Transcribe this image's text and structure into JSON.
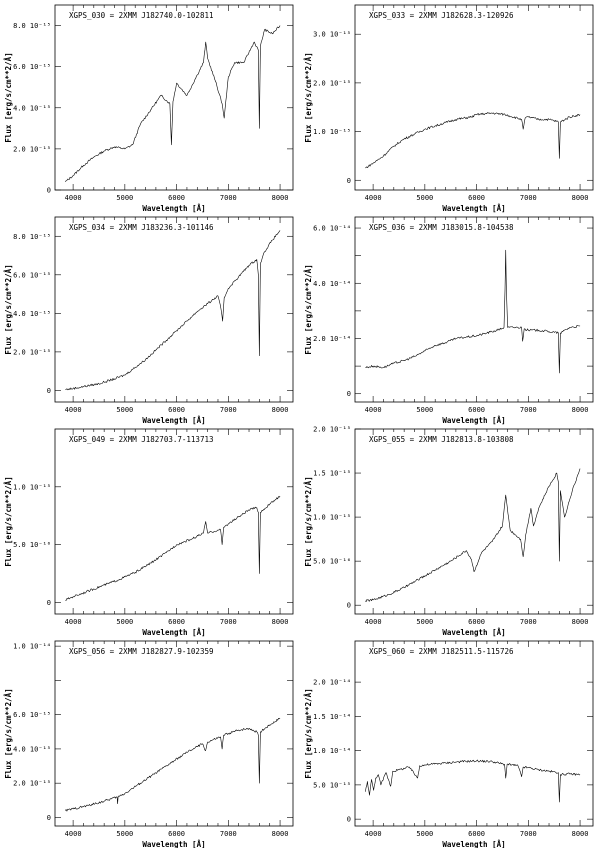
{
  "figure": {
    "xlabel": "Wavelength [Å]",
    "ylabel": "Flux [erg/s/cm**2/Å]"
  },
  "chart_data": [
    {
      "type": "line",
      "title": "XGPS_030 = 2XMM J182740.0-102811",
      "xlabel": "Wavelength [Å]",
      "ylabel": "Flux [erg/s/cm**2/Å]",
      "xlim": [
        3650,
        8250
      ],
      "ylim": [
        0,
        9e-15
      ],
      "xticks": [
        4000,
        5000,
        6000,
        7000,
        8000
      ],
      "yticks": [
        0,
        2e-15,
        4e-15,
        6e-15,
        8e-15
      ],
      "ytick_labels": [
        "0",
        "2.0 10⁻¹⁵",
        "4.0 10⁻¹⁵",
        "6.0 10⁻¹⁵",
        "8.0 10⁻¹⁵"
      ],
      "series": [
        {
          "x": [
            3850,
            4000,
            4200,
            4400,
            4600,
            4800,
            5000,
            5150,
            5300,
            5500,
            5700,
            5870,
            5900,
            5930,
            6000,
            6200,
            6400,
            6520,
            6563,
            6600,
            6750,
            6880,
            6920,
            7000,
            7120,
            7300,
            7500,
            7580,
            7600,
            7620,
            7700,
            7850,
            8000
          ],
          "y": [
            4e-16,
            7e-16,
            1.2e-15,
            1.6e-15,
            1.9e-15,
            2.1e-15,
            2e-15,
            2.2e-15,
            3.2e-15,
            3.9e-15,
            4.6e-15,
            4.2e-15,
            2.2e-15,
            4.3e-15,
            5.2e-15,
            4.6e-15,
            5.6e-15,
            6.2e-15,
            7.2e-15,
            6.4e-15,
            5.3e-15,
            4.2e-15,
            3.5e-15,
            5.5e-15,
            6.2e-15,
            6.2e-15,
            7.2e-15,
            6.8e-15,
            3e-15,
            7e-15,
            7.8e-15,
            7.6e-15,
            8e-15
          ]
        }
      ]
    },
    {
      "type": "line",
      "title": "XGPS_033 = 2XMM J182628.3-120926",
      "xlabel": "Wavelength [Å]",
      "ylabel": "Flux [erg/s/cm**2/Å]",
      "xlim": [
        3650,
        8250
      ],
      "ylim": [
        -2e-16,
        3.6e-15
      ],
      "xticks": [
        4000,
        5000,
        6000,
        7000,
        8000
      ],
      "yticks": [
        0,
        1e-15,
        2e-15,
        3e-15
      ],
      "ytick_labels": [
        "0",
        "1.0 10⁻¹⁵",
        "2.0 10⁻¹⁵",
        "3.0 10⁻¹⁵"
      ],
      "series": [
        {
          "x": [
            3850,
            4000,
            4200,
            4400,
            4600,
            4800,
            5000,
            5300,
            5600,
            5900,
            6000,
            6300,
            6550,
            6870,
            6900,
            6940,
            7000,
            7200,
            7400,
            7580,
            7600,
            7620,
            7800,
            8000
          ],
          "y": [
            2.5e-16,
            3.5e-16,
            5e-16,
            7e-16,
            8.5e-16,
            9.5e-16,
            1.05e-15,
            1.15e-15,
            1.25e-15,
            1.3e-15,
            1.35e-15,
            1.38e-15,
            1.35e-15,
            1.25e-15,
            1.05e-15,
            1.28e-15,
            1.3e-15,
            1.25e-15,
            1.25e-15,
            1.2e-15,
            4.5e-16,
            1.2e-15,
            1.3e-15,
            1.35e-15
          ]
        }
      ]
    },
    {
      "type": "line",
      "title": "XGPS_034 = 2XMM J183236.3-101146",
      "xlabel": "Wavelength [Å]",
      "ylabel": "Flux [erg/s/cm**2/Å]",
      "xlim": [
        3650,
        8250
      ],
      "ylim": [
        -6e-16,
        9e-15
      ],
      "xticks": [
        4000,
        5000,
        6000,
        7000,
        8000
      ],
      "yticks": [
        0,
        2e-15,
        4e-15,
        6e-15,
        8e-15
      ],
      "ytick_labels": [
        "0",
        "2.0 10⁻¹⁵",
        "4.0 10⁻¹⁵",
        "6.0 10⁻¹⁵",
        "8.0 10⁻¹⁵"
      ],
      "series": [
        {
          "x": [
            3850,
            4000,
            4200,
            4500,
            4800,
            5000,
            5200,
            5400,
            5600,
            5800,
            6000,
            6200,
            6400,
            6600,
            6800,
            6860,
            6890,
            6920,
            7000,
            7200,
            7400,
            7550,
            7580,
            7600,
            7620,
            7700,
            7850,
            8000
          ],
          "y": [
            5e-17,
            1e-16,
            2e-16,
            3.5e-16,
            6e-16,
            8e-16,
            1.2e-15,
            1.6e-15,
            2.1e-15,
            2.6e-15,
            3.1e-15,
            3.6e-15,
            4.1e-15,
            4.5e-15,
            4.9e-15,
            4.2e-15,
            3.6e-15,
            4.8e-15,
            5.3e-15,
            5.9e-15,
            6.5e-15,
            6.8e-15,
            6e-15,
            1.8e-15,
            6.6e-15,
            7.2e-15,
            7.8e-15,
            8.3e-15
          ]
        }
      ]
    },
    {
      "type": "line",
      "title": "XGPS_036 = 2XMM J183015.8-104538",
      "xlabel": "Wavelength [Å]",
      "ylabel": "Flux [erg/s/cm**2/Å]",
      "xlim": [
        3650,
        8250
      ],
      "ylim": [
        -3e-15,
        6.4e-14
      ],
      "xticks": [
        4000,
        5000,
        6000,
        7000,
        8000
      ],
      "yticks": [
        0,
        1e-14,
        2e-14,
        3e-14,
        4e-14,
        5e-14,
        6e-14
      ],
      "ytick_labels": [
        "0",
        "",
        "2.0 10⁻¹⁴",
        "",
        "4.0 10⁻¹⁴",
        "",
        "6.0 10⁻¹⁴"
      ],
      "series": [
        {
          "x": [
            3850,
            4000,
            4200,
            4400,
            4600,
            4800,
            5000,
            5200,
            5400,
            5600,
            5800,
            6000,
            6200,
            6400,
            6530,
            6550,
            6563,
            6575,
            6600,
            6800,
            6870,
            6890,
            6920,
            7000,
            7200,
            7400,
            7580,
            7600,
            7620,
            7800,
            8000
          ],
          "y": [
            9.5e-15,
            1e-14,
            9.5e-15,
            1.1e-14,
            1.2e-14,
            1.35e-14,
            1.55e-14,
            1.75e-14,
            1.85e-14,
            2e-14,
            2.05e-14,
            2.1e-14,
            2.2e-14,
            2.3e-14,
            2.4e-14,
            3.8e-14,
            5.2e-14,
            3.8e-14,
            2.4e-14,
            2.4e-14,
            2.4e-14,
            1.9e-14,
            2.35e-14,
            2.3e-14,
            2.3e-14,
            2.25e-14,
            2.2e-14,
            7.5e-15,
            2.2e-14,
            2.4e-14,
            2.45e-14
          ]
        }
      ]
    },
    {
      "type": "line",
      "title": "XGPS_049 = 2XMM J182703.7-113713",
      "xlabel": "Wavelength [Å]",
      "ylabel": "Flux [erg/s/cm**2/Å]",
      "xlim": [
        3650,
        8250
      ],
      "ylim": [
        -1e-16,
        1.5e-15
      ],
      "xticks": [
        4000,
        5000,
        6000,
        7000,
        8000
      ],
      "yticks": [
        0,
        5e-16,
        1e-15
      ],
      "ytick_labels": [
        "0",
        "5.0 10⁻¹⁶",
        "1.0 10⁻¹⁵"
      ],
      "series": [
        {
          "x": [
            3850,
            4000,
            4300,
            4600,
            4900,
            5200,
            5500,
            5800,
            6000,
            6300,
            6520,
            6563,
            6600,
            6850,
            6880,
            6910,
            7000,
            7200,
            7400,
            7550,
            7580,
            7600,
            7620,
            7800,
            8000
          ],
          "y": [
            2e-17,
            5e-17,
            1e-16,
            1.5e-16,
            2e-16,
            2.6e-16,
            3.4e-16,
            4.3e-16,
            5e-16,
            5.5e-16,
            6e-16,
            7e-16,
            6e-16,
            6.3e-16,
            5e-16,
            6.5e-16,
            6.8e-16,
            7.4e-16,
            8e-16,
            8.2e-16,
            7.8e-16,
            2.5e-16,
            7.8e-16,
            8.5e-16,
            9.2e-16
          ]
        }
      ]
    },
    {
      "type": "line",
      "title": "XGPS_055 = 2XMM J182813.8-103808",
      "xlabel": "Wavelength [Å]",
      "ylabel": "Flux [erg/s/cm**2/Å]",
      "xlim": [
        3650,
        8250
      ],
      "ylim": [
        -1e-16,
        2e-15
      ],
      "xticks": [
        4000,
        5000,
        6000,
        7000,
        8000
      ],
      "yticks": [
        0,
        5e-16,
        1e-15,
        1.5e-15,
        2e-15
      ],
      "ytick_labels": [
        "0",
        "5.0 10⁻¹⁶",
        "1.0 10⁻¹⁵",
        "1.5 10⁻¹⁵",
        "2.0 10⁻¹⁵"
      ],
      "series": [
        {
          "x": [
            3850,
            4000,
            4300,
            4600,
            4900,
            5200,
            5500,
            5800,
            5900,
            5950,
            6100,
            6300,
            6500,
            6563,
            6650,
            6850,
            6900,
            6950,
            7050,
            7100,
            7200,
            7400,
            7550,
            7580,
            7600,
            7620,
            7700,
            7850,
            8000
          ],
          "y": [
            5e-17,
            6e-17,
            1.2e-16,
            2e-16,
            3e-16,
            4e-16,
            5e-16,
            6.2e-16,
            5.2e-16,
            3.8e-16,
            6e-16,
            7.2e-16,
            9e-16,
            1.25e-15,
            8.5e-16,
            7.5e-16,
            5.5e-16,
            8e-16,
            1.1e-15,
            9e-16,
            1.1e-15,
            1.35e-15,
            1.5e-15,
            1.4e-15,
            5e-16,
            1.3e-15,
            1e-15,
            1.3e-15,
            1.55e-15
          ]
        }
      ]
    },
    {
      "type": "line",
      "title": "XGPS_056 = 2XMM J182827.9-102359",
      "xlabel": "Wavelength [Å]",
      "ylabel": "Flux [erg/s/cm**2/Å]",
      "xlim": [
        3650,
        8250
      ],
      "ylim": [
        -5e-16,
        1.03e-14
      ],
      "xticks": [
        4000,
        5000,
        6000,
        7000,
        8000
      ],
      "yticks": [
        0,
        2e-15,
        4e-15,
        6e-15,
        8e-15,
        1e-14
      ],
      "ytick_labels": [
        "0",
        "2.0 10⁻¹⁵",
        "4.0 10⁻¹⁵",
        "6.0 10⁻¹⁵",
        "",
        "1.0 10⁻¹⁴"
      ],
      "series": [
        {
          "x": [
            3850,
            4000,
            4300,
            4600,
            4850,
            4860,
            4870,
            5000,
            5300,
            5600,
            5900,
            6200,
            6500,
            6560,
            6600,
            6850,
            6880,
            6910,
            7000,
            7200,
            7400,
            7550,
            7580,
            7600,
            7620,
            7800,
            8000
          ],
          "y": [
            4e-16,
            5e-16,
            7e-16,
            9.5e-16,
            1.2e-15,
            8e-16,
            1.2e-15,
            1.4e-15,
            2e-15,
            2.6e-15,
            3.2e-15,
            3.8e-15,
            4.3e-15,
            3.9e-15,
            4.4e-15,
            4.7e-15,
            4e-15,
            4.8e-15,
            4.9e-15,
            5.1e-15,
            5.2e-15,
            5e-15,
            4.8e-15,
            2e-15,
            5e-15,
            5.4e-15,
            5.8e-15
          ]
        }
      ]
    },
    {
      "type": "line",
      "title": "XGPS_060 = 2XMM J182511.5-115726",
      "xlabel": "Wavelength [Å]",
      "ylabel": "Flux [erg/s/cm**2/Å]",
      "xlim": [
        3650,
        8250
      ],
      "ylim": [
        -1e-15,
        2.6e-14
      ],
      "xticks": [
        4000,
        5000,
        6000,
        7000,
        8000
      ],
      "yticks": [
        0,
        5e-15,
        1e-14,
        1.5e-14,
        2e-14
      ],
      "ytick_labels": [
        "0",
        "5.0 10⁻¹⁵",
        "1.0 10⁻¹⁴",
        "1.5 10⁻¹⁴",
        "2.0 10⁻¹⁴"
      ],
      "series": [
        {
          "x": [
            3850,
            3890,
            3930,
            3970,
            4010,
            4050,
            4100,
            4150,
            4250,
            4340,
            4380,
            4500,
            4700,
            4860,
            4900,
            5100,
            5400,
            5700,
            6000,
            6300,
            6540,
            6563,
            6590,
            6800,
            6870,
            6900,
            7000,
            7200,
            7400,
            7580,
            7600,
            7620,
            7800,
            8000
          ],
          "y": [
            4e-15,
            5.5e-15,
            3.5e-15,
            5.8e-15,
            4.2e-15,
            6e-15,
            6.5e-15,
            5e-15,
            6.8e-15,
            4.8e-15,
            7e-15,
            7.2e-15,
            7.6e-15,
            6e-15,
            7.8e-15,
            8e-15,
            8.2e-15,
            8.4e-15,
            8.5e-15,
            8.4e-15,
            8e-15,
            6e-15,
            8e-15,
            7.8e-15,
            6.2e-15,
            7.6e-15,
            7.5e-15,
            7.2e-15,
            7e-15,
            6.8e-15,
            2.5e-15,
            6.5e-15,
            6.6e-15,
            6.5e-15
          ]
        }
      ]
    }
  ]
}
